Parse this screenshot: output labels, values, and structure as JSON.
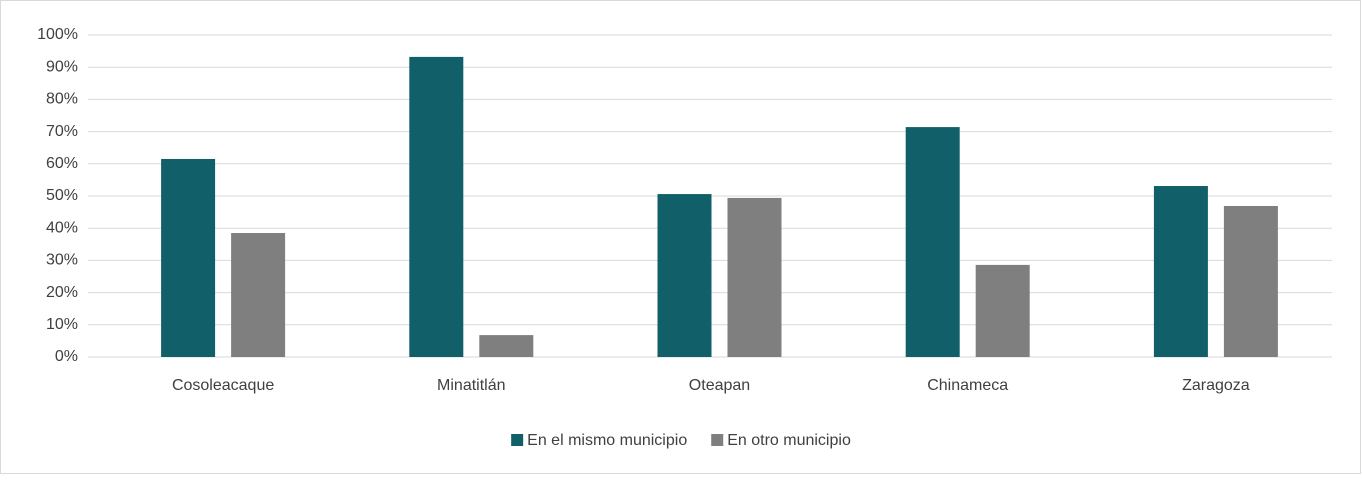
{
  "chart_data": {
    "type": "bar",
    "categories": [
      "Cosoleacaque",
      "Minatitlán",
      "Oteapan",
      "Chinameca",
      "Zaragoza"
    ],
    "series": [
      {
        "name": "En el mismo municipio",
        "color": "#115f68",
        "values": [
          61.5,
          93.2,
          50.6,
          71.4,
          53.1
        ]
      },
      {
        "name": "En otro municipio",
        "color": "#7f7f7f",
        "values": [
          38.5,
          6.8,
          49.4,
          28.6,
          46.9
        ]
      }
    ],
    "ylim": [
      0,
      100
    ],
    "yticks": [
      {
        "value": 0,
        "label": "0%"
      },
      {
        "value": 10,
        "label": "10%"
      },
      {
        "value": 20,
        "label": "20%"
      },
      {
        "value": 30,
        "label": "30%"
      },
      {
        "value": 40,
        "label": "40%"
      },
      {
        "value": 50,
        "label": "50%"
      },
      {
        "value": 60,
        "label": "60%"
      },
      {
        "value": 70,
        "label": "70%"
      },
      {
        "value": 80,
        "label": "80%"
      },
      {
        "value": 90,
        "label": "90%"
      },
      {
        "value": 100,
        "label": "100%"
      }
    ],
    "grid": true,
    "legend": "bottom"
  }
}
